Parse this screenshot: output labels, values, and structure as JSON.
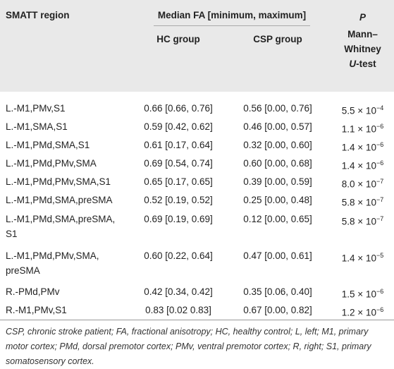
{
  "table": {
    "header": {
      "region": "SMATT region",
      "median": "Median FA [minimum, maximum]",
      "p": "P",
      "hc": "HC group",
      "csp": "CSP group",
      "test": {
        "lines": [
          "Mann–",
          "Whitney"
        ],
        "italic": "U",
        "rest": "-test"
      }
    },
    "rows": [
      {
        "region": [
          "L.-M1,PMv,S1"
        ],
        "hc": "0.66 [0.66, 0.76]",
        "csp": "0.56 [0.00, 0.76]",
        "p": {
          "base": "5.5 × 10",
          "exp": "−4"
        }
      },
      {
        "region": [
          "L.-M1,SMA,S1"
        ],
        "hc": "0.59 [0.42, 0.62]",
        "csp": "0.46 [0.00, 0.57]",
        "p": {
          "base": "1.1 × 10",
          "exp": "−6"
        }
      },
      {
        "region": [
          "L.-M1,PMd,SMA,S1"
        ],
        "hc": "0.61 [0.17, 0.64]",
        "csp": "0.32 [0.00, 0.60]",
        "p": {
          "base": "1.4 × 10",
          "exp": "−6"
        }
      },
      {
        "region": [
          "L.-M1,PMd,PMv,SMA"
        ],
        "hc": "0.69 [0.54, 0.74]",
        "csp": "0.60 [0.00, 0.68]",
        "p": {
          "base": "1.4 × 10",
          "exp": "−6"
        }
      },
      {
        "region": [
          "L.-M1,PMd,PMv,SMA,S1"
        ],
        "hc": "0.65 [0.17, 0.65]",
        "csp": "0.39 [0.00, 0.59]",
        "p": {
          "base": "8.0 × 10",
          "exp": "−7"
        }
      },
      {
        "region": [
          "L.-M1,PMd,SMA,preSMA"
        ],
        "hc": "0.52 [0.19, 0.52]",
        "csp": "0.25 [0.00, 0.48]",
        "p": {
          "base": "5.8 × 10",
          "exp": "−7"
        }
      },
      {
        "region": [
          "L.-M1,PMd,SMA,preSMA,",
          "S1"
        ],
        "hc": "0.69 [0.19, 0.69]",
        "csp": "0.12 [0.00, 0.65]",
        "p": {
          "base": "5.8 × 10",
          "exp": "−7"
        }
      },
      {
        "region": [
          "L.-M1,PMd,PMv,SMA,",
          "preSMA"
        ],
        "hc": "0.60 [0.22, 0.64]",
        "csp": "0.47 [0.00, 0.61]",
        "p": {
          "base": "1.4 × 10",
          "exp": "−5"
        }
      },
      {
        "region": [
          "R.-PMd,PMv"
        ],
        "hc": "0.42 [0.34, 0.42]",
        "csp": "0.35 [0.06, 0.40]",
        "p": {
          "base": "1.5 × 10",
          "exp": "−6"
        }
      },
      {
        "region": [
          "R.-M1,PMv,S1"
        ],
        "hc": "0.83 [0.02 0.83]",
        "csp": "0.67 [0.00, 0.82]",
        "p": {
          "base": "1.2 × 10",
          "exp": "−6"
        }
      }
    ],
    "footnote": "CSP, chronic stroke patient; FA, fractional anisotropy; HC, healthy control; L, left; M1, primary motor cortex; PMd, dorsal premotor cortex; PMv, ventral premotor cortex; R, right; S1, primary somatosensory cortex."
  }
}
